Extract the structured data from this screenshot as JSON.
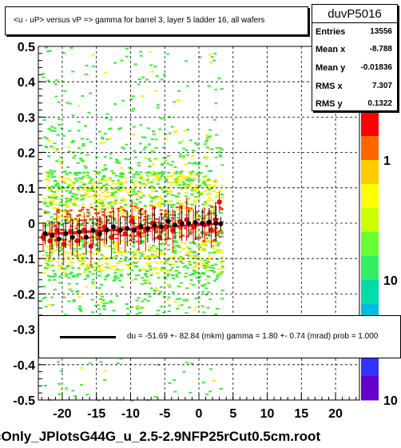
{
  "chart_data": {
    "type": "scatter",
    "title": "<u - uP>       versus   vP =>  gamma for barrel 3, layer 5 ladder 16, all  wafers",
    "xlim": [
      -23.5,
      23.5
    ],
    "ylim": [
      -0.5,
      0.5
    ],
    "x_ticks": [
      -20,
      -15,
      -10,
      -5,
      0,
      5,
      10,
      15,
      20
    ],
    "x_tick_labels": [
      "-20",
      "-15",
      "-10",
      "-5",
      "0",
      "5",
      "10",
      "15",
      "20"
    ],
    "y_ticks": [
      -0.5,
      -0.4,
      -0.3,
      -0.2,
      -0.1,
      0,
      0.1,
      0.2,
      0.3,
      0.4,
      0.5
    ],
    "y_tick_labels": [
      "-0.5",
      "-0.4",
      "-0.3",
      "-0.2",
      "-0.1",
      "0",
      "0.1",
      "0.2",
      "0.3",
      "0.4",
      "0.5"
    ],
    "z_axis_labels": [
      "1",
      "10",
      "10"
    ],
    "grid": true,
    "stats": {
      "name": "duvP5016",
      "rows": [
        {
          "label": "Entries",
          "value": "13556"
        },
        {
          "label": "Mean x",
          "value": "-8.788"
        },
        {
          "label": "Mean y",
          "value": "-0.01836"
        },
        {
          "label": "RMS x",
          "value": "7.307"
        },
        {
          "label": "RMS y",
          "value": "0.1322"
        }
      ]
    },
    "legend": {
      "text": "du =  -51.69 +- 82.84 (mkm) gamma =    1.80 +-  0.74 (mrad) prob = 1.000"
    },
    "fit_line": {
      "x": [
        -23,
        3
      ],
      "y": [
        -0.032,
        -0.001
      ]
    },
    "profile_black": [
      {
        "x": -22.5,
        "y": -0.03,
        "err": 0.03
      },
      {
        "x": -21.5,
        "y": -0.035,
        "err": 0.04
      },
      {
        "x": -20.5,
        "y": -0.045,
        "err": 0.05
      },
      {
        "x": -19.5,
        "y": -0.03,
        "err": 0.04
      },
      {
        "x": -18.5,
        "y": -0.04,
        "err": 0.05
      },
      {
        "x": -17.5,
        "y": -0.025,
        "err": 0.04
      },
      {
        "x": -16.5,
        "y": -0.04,
        "err": 0.05
      },
      {
        "x": -15.5,
        "y": -0.02,
        "err": 0.04
      },
      {
        "x": -14.5,
        "y": -0.03,
        "err": 0.05
      },
      {
        "x": -13.5,
        "y": -0.02,
        "err": 0.04
      },
      {
        "x": -12.5,
        "y": -0.01,
        "err": 0.05
      },
      {
        "x": -11.5,
        "y": -0.02,
        "err": 0.04
      },
      {
        "x": -10.5,
        "y": -0.015,
        "err": 0.05
      },
      {
        "x": -9.5,
        "y": -0.02,
        "err": 0.04
      },
      {
        "x": -8.5,
        "y": -0.01,
        "err": 0.05
      },
      {
        "x": -7.5,
        "y": -0.015,
        "err": 0.04
      },
      {
        "x": -6.5,
        "y": -0.005,
        "err": 0.05
      },
      {
        "x": -5.5,
        "y": -0.01,
        "err": 0.04
      },
      {
        "x": -4.5,
        "y": 0.005,
        "err": 0.05
      },
      {
        "x": -3.5,
        "y": -0.005,
        "err": 0.04
      },
      {
        "x": -2.5,
        "y": 0.0,
        "err": 0.05
      },
      {
        "x": -1.5,
        "y": 0.0,
        "err": 0.04
      },
      {
        "x": -0.5,
        "y": 0.002,
        "err": 0.05
      },
      {
        "x": 0.5,
        "y": 0.0,
        "err": 0.04
      },
      {
        "x": 1.5,
        "y": 0.003,
        "err": 0.04
      },
      {
        "x": 2.5,
        "y": 0.0,
        "err": 0.05
      },
      {
        "x": 3.2,
        "y": -0.002,
        "err": 0.02
      }
    ],
    "profile_red": [
      {
        "x": -22.8,
        "y": -0.04,
        "err": 0.04
      },
      {
        "x": -21.8,
        "y": -0.05,
        "err": 0.05
      },
      {
        "x": -20.8,
        "y": -0.02,
        "err": 0.05
      },
      {
        "x": -19.8,
        "y": -0.06,
        "err": 0.06
      },
      {
        "x": -18.8,
        "y": -0.025,
        "err": 0.05
      },
      {
        "x": -17.8,
        "y": -0.05,
        "err": 0.05
      },
      {
        "x": -16.8,
        "y": -0.02,
        "err": 0.05
      },
      {
        "x": -15.8,
        "y": -0.065,
        "err": 0.06
      },
      {
        "x": -14.8,
        "y": -0.03,
        "err": 0.05
      },
      {
        "x": -13.8,
        "y": -0.01,
        "err": 0.05
      },
      {
        "x": -12.8,
        "y": -0.04,
        "err": 0.06
      },
      {
        "x": -11.8,
        "y": -0.02,
        "err": 0.06
      },
      {
        "x": -10.8,
        "y": -0.03,
        "err": 0.05
      },
      {
        "x": -9.8,
        "y": 0.005,
        "err": 0.06
      },
      {
        "x": -8.8,
        "y": -0.03,
        "err": 0.05
      },
      {
        "x": -7.8,
        "y": -0.02,
        "err": 0.06
      },
      {
        "x": -6.8,
        "y": 0.0,
        "err": 0.05
      },
      {
        "x": -5.8,
        "y": -0.04,
        "err": 0.06
      },
      {
        "x": -4.8,
        "y": -0.01,
        "err": 0.05
      },
      {
        "x": -3.8,
        "y": -0.02,
        "err": 0.06
      },
      {
        "x": -2.8,
        "y": 0.005,
        "err": 0.05
      },
      {
        "x": -1.8,
        "y": 0.01,
        "err": 0.06
      },
      {
        "x": -0.8,
        "y": -0.01,
        "err": 0.05
      },
      {
        "x": 0.8,
        "y": -0.005,
        "err": 0.05
      },
      {
        "x": 1.8,
        "y": -0.02,
        "err": 0.05
      },
      {
        "x": 2.4,
        "y": 0.01,
        "err": 0.05
      },
      {
        "x": 3.0,
        "y": 0.06,
        "err": 0.03
      }
    ],
    "colors": {
      "low": "#33ee33",
      "mid": "#ffee00",
      "high": "#ff3300",
      "fit": "#ff0000",
      "profile": "#000000",
      "points_red": "#ff0000"
    }
  },
  "footer": {
    "filename": "cOnly_JPlotsG44G_u_2.5-2.9NFP25rCut0.5cm.root"
  }
}
